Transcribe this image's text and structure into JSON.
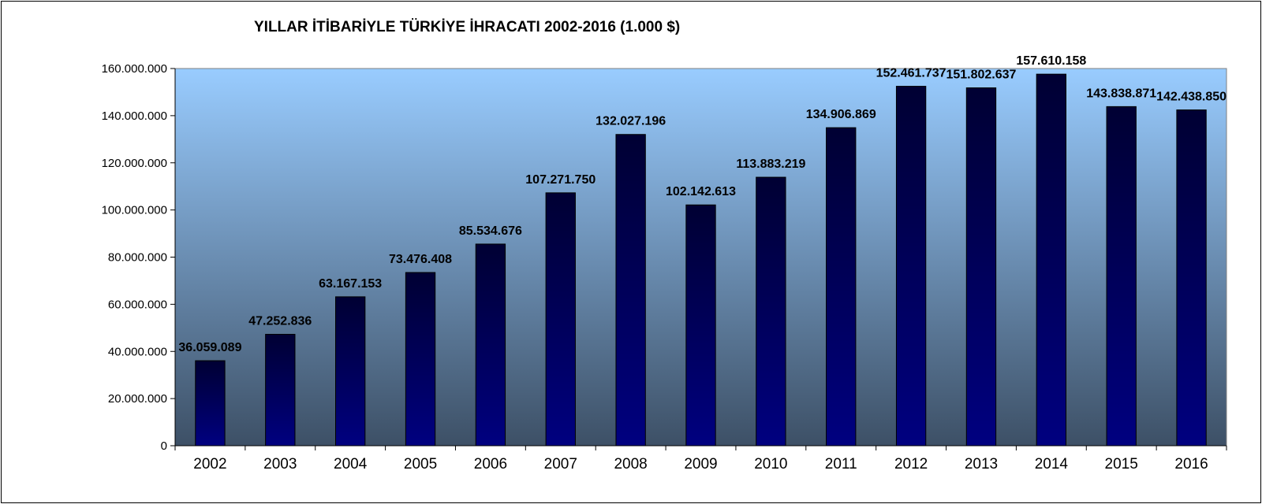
{
  "chart_data": {
    "type": "bar",
    "title": "YILLAR İTİBARİYLE TÜRKİYE İHRACATI 2002-2016 (1.000 $)",
    "xlabel": "",
    "ylabel": "",
    "categories": [
      "2002",
      "2003",
      "2004",
      "2005",
      "2006",
      "2007",
      "2008",
      "2009",
      "2010",
      "2011",
      "2012",
      "2013",
      "2014",
      "2015",
      "2016"
    ],
    "values": [
      36059089,
      47252836,
      63167153,
      73476408,
      85534676,
      107271750,
      132027196,
      102142613,
      113883219,
      134906869,
      152461737,
      151802637,
      157610158,
      143838871,
      142438850
    ],
    "data_labels": [
      "36.059.089",
      "47.252.836",
      "63.167.153",
      "73.476.408",
      "85.534.676",
      "107.271.750",
      "132.027.196",
      "102.142.613",
      "113.883.219",
      "134.906.869",
      "152.461.737",
      "151.802.637",
      "157.610.158",
      "143.838.871",
      "142.438.850"
    ],
    "ylim": [
      0,
      160000000
    ],
    "yticks": [
      0,
      20000000,
      40000000,
      60000000,
      80000000,
      100000000,
      120000000,
      140000000,
      160000000
    ],
    "ytick_labels": [
      "0",
      "20.000.000",
      "40.000.000",
      "60.000.000",
      "80.000.000",
      "100.000.000",
      "120.000.000",
      "140.000.000",
      "160.000.000"
    ],
    "grid": false,
    "legend": "none",
    "colors": {
      "bar_top": "#000033",
      "bar_bottom": "#000080",
      "plot_bg_top": "#99ccff",
      "plot_bg_bottom": "#3d5066"
    }
  }
}
